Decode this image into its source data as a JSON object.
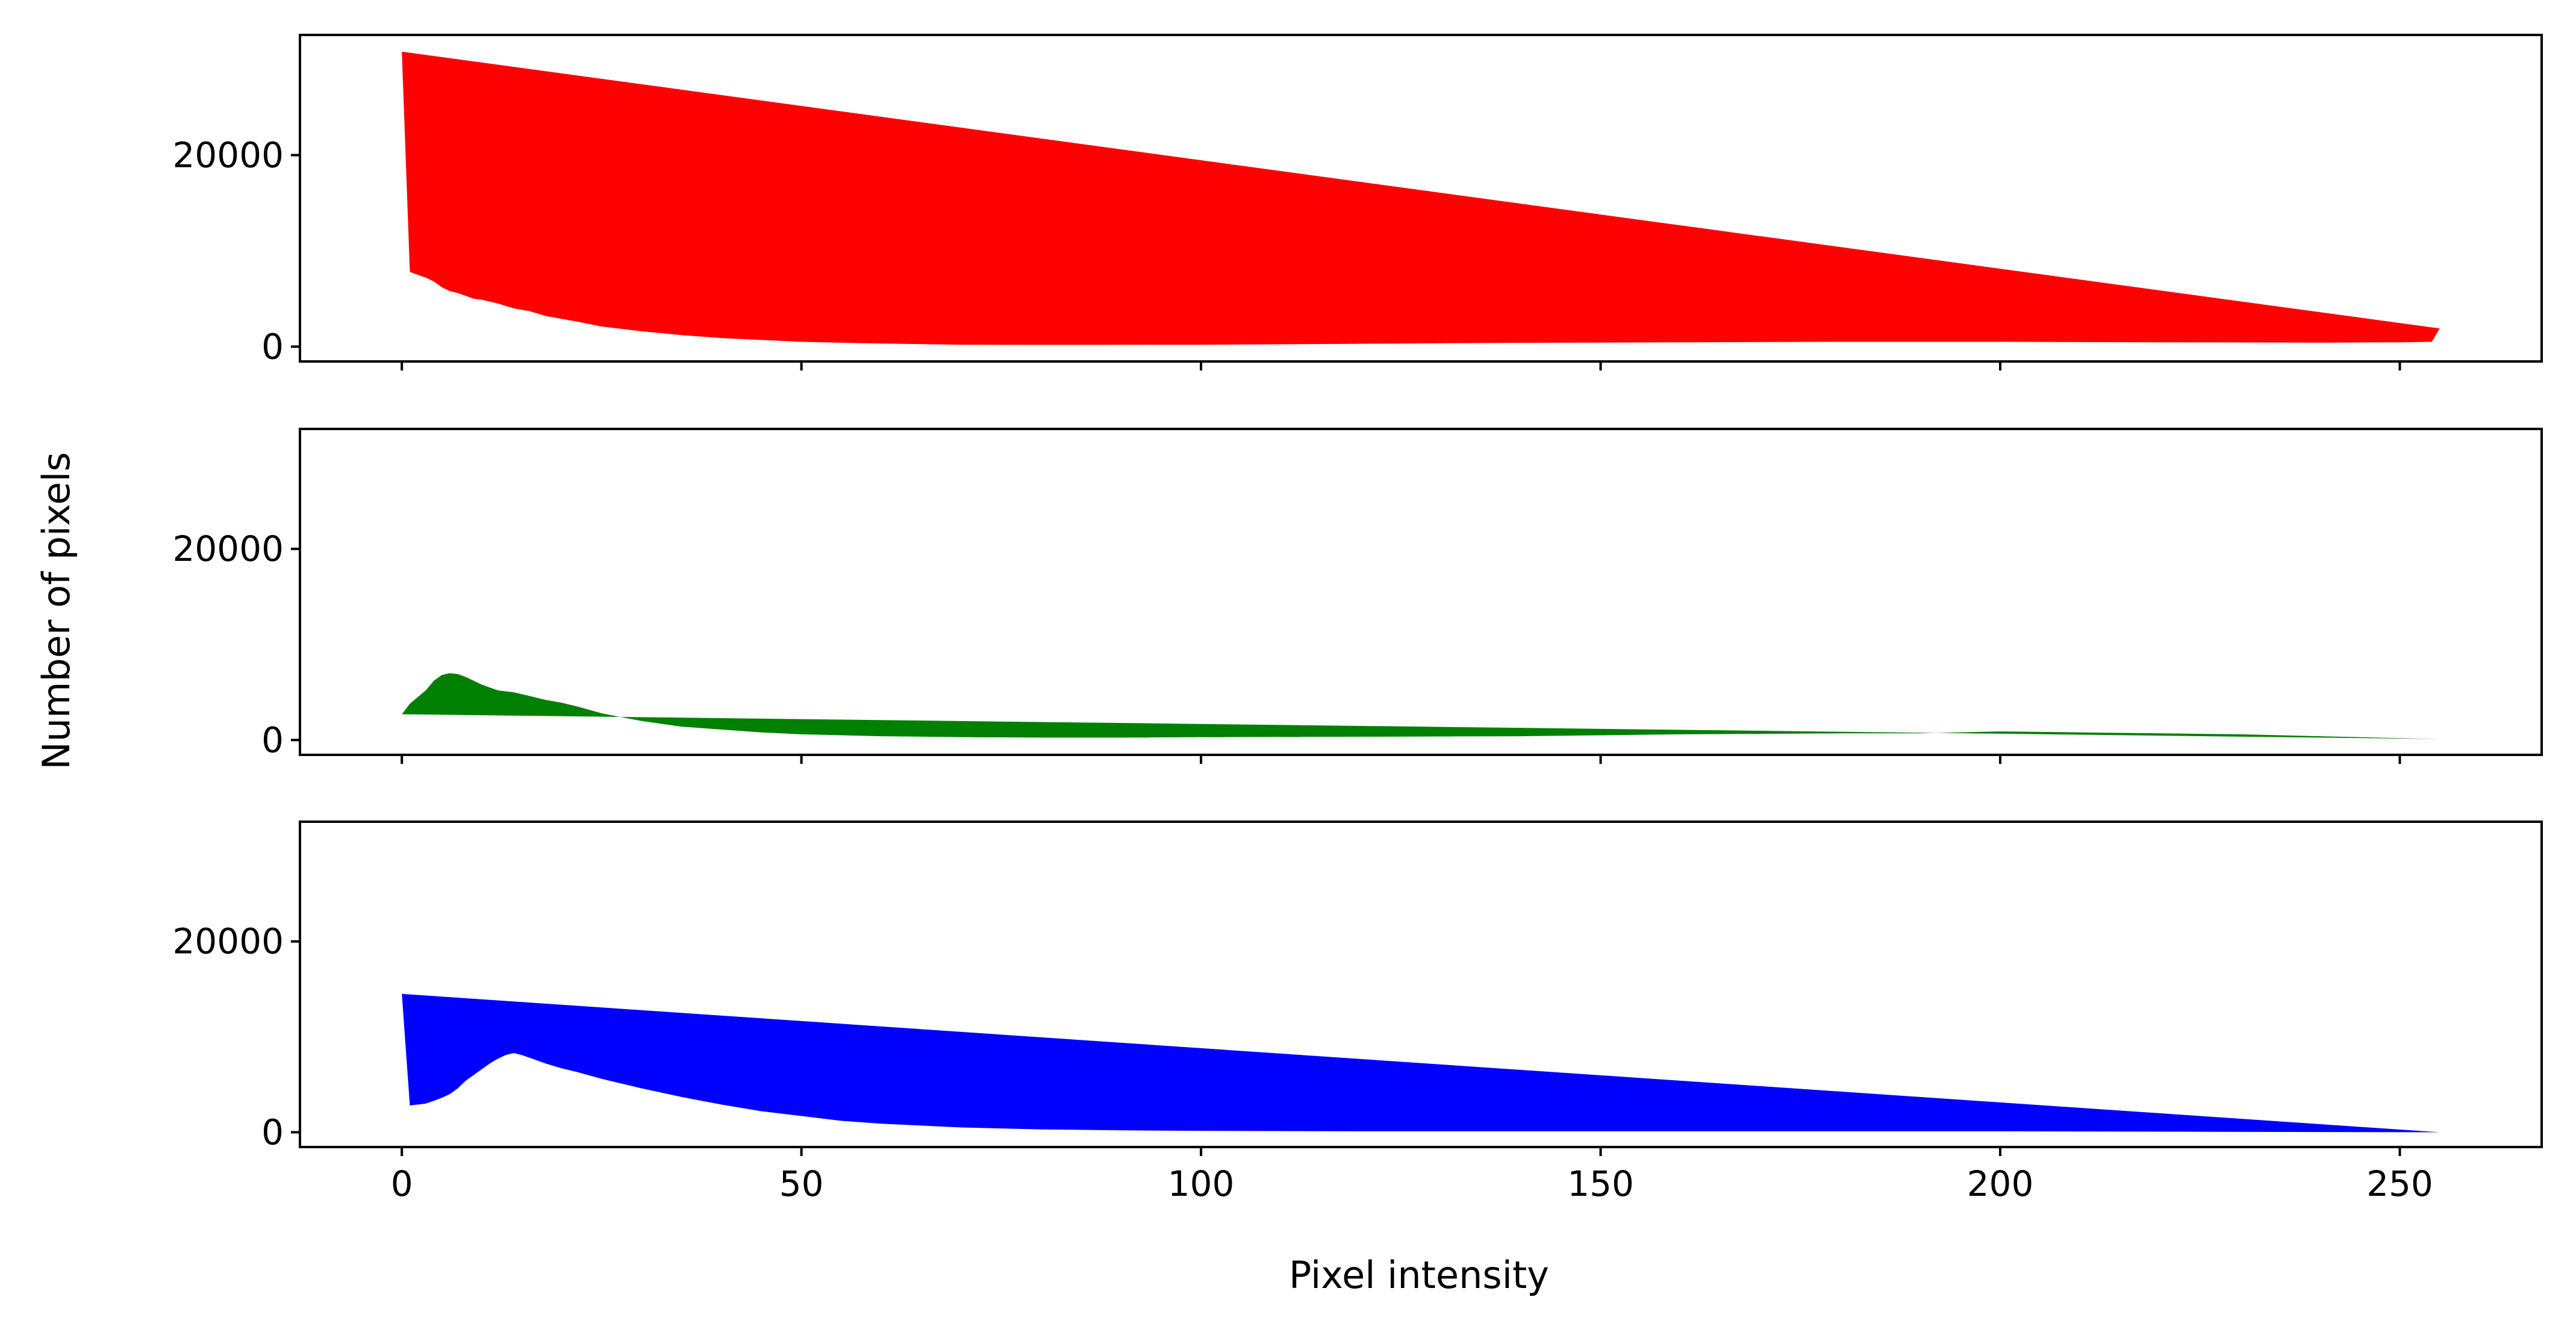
{
  "chart_data": {
    "type": "area",
    "xlabel": "Pixel intensity",
    "ylabel": "Number of pixels",
    "xlim": [
      -12.75,
      267.75
    ],
    "ylim": [
      -1550,
      32550
    ],
    "xticks": [
      0,
      50,
      100,
      150,
      200,
      250
    ],
    "yticks": [
      0,
      20000
    ],
    "grid": false,
    "sharex": true,
    "panels": [
      {
        "name": "red",
        "color": "#ff0000",
        "x": [
          0,
          1,
          2,
          3,
          4,
          5,
          6,
          7,
          8,
          9,
          10,
          12,
          14,
          16,
          18,
          20,
          22,
          25,
          30,
          35,
          40,
          50,
          60,
          70,
          80,
          100,
          120,
          140,
          160,
          180,
          200,
          220,
          240,
          250,
          254,
          255
        ],
        "y": [
          30800,
          7800,
          7500,
          7200,
          6800,
          6200,
          5800,
          5600,
          5300,
          5000,
          4900,
          4500,
          4000,
          3700,
          3200,
          2900,
          2600,
          2100,
          1600,
          1200,
          900,
          500,
          320,
          200,
          180,
          200,
          300,
          400,
          450,
          500,
          500,
          450,
          420,
          450,
          500,
          1900
        ]
      },
      {
        "name": "green",
        "color": "#008000",
        "x": [
          0,
          1,
          2,
          3,
          4,
          5,
          6,
          7,
          8,
          10,
          12,
          14,
          16,
          18,
          20,
          22,
          25,
          28,
          30,
          35,
          40,
          45,
          50,
          60,
          70,
          80,
          90,
          100,
          120,
          140,
          160,
          180,
          190,
          200,
          210,
          220,
          230,
          240,
          250,
          255
        ],
        "y": [
          2700,
          3800,
          4500,
          5200,
          6200,
          6800,
          7000,
          6900,
          6600,
          5800,
          5200,
          5000,
          4600,
          4200,
          3900,
          3500,
          2800,
          2300,
          2000,
          1400,
          1100,
          800,
          600,
          400,
          300,
          250,
          250,
          300,
          350,
          400,
          600,
          700,
          700,
          900,
          800,
          700,
          600,
          400,
          200,
          100
        ]
      },
      {
        "name": "blue",
        "color": "#0000ff",
        "x": [
          0,
          1,
          2,
          3,
          4,
          5,
          6,
          7,
          8,
          9,
          10,
          11,
          12,
          13,
          14,
          15,
          16,
          18,
          20,
          22,
          25,
          28,
          30,
          35,
          40,
          45,
          50,
          55,
          60,
          70,
          80,
          90,
          100,
          120,
          140,
          160,
          200,
          255
        ],
        "y": [
          14500,
          2800,
          2900,
          3000,
          3300,
          3600,
          4000,
          4600,
          5400,
          6000,
          6600,
          7200,
          7700,
          8100,
          8300,
          8100,
          7800,
          7200,
          6700,
          6300,
          5600,
          5000,
          4600,
          3700,
          2900,
          2200,
          1700,
          1200,
          900,
          500,
          300,
          200,
          150,
          100,
          100,
          100,
          100,
          0
        ]
      }
    ]
  }
}
